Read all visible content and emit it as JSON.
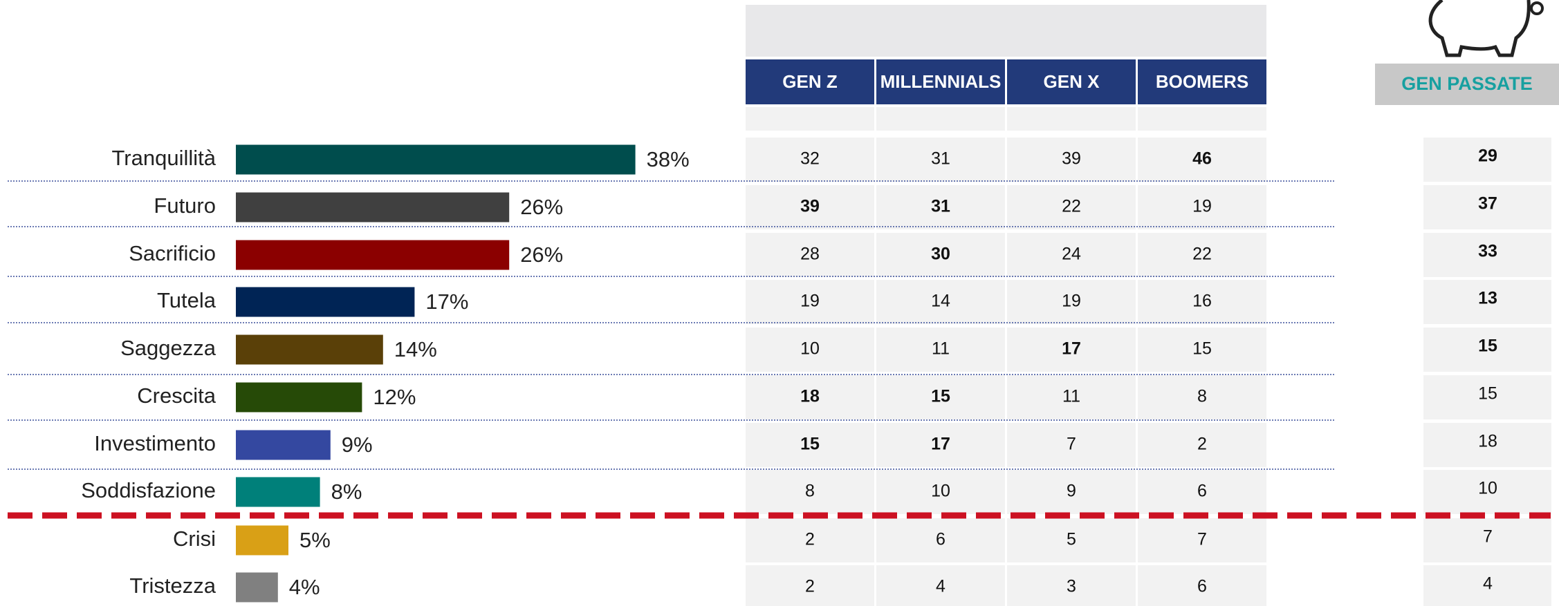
{
  "chart_data": {
    "type": "bar",
    "orientation": "horizontal",
    "categories": [
      "Tranquillità",
      "Futuro",
      "Sacrificio",
      "Tutela",
      "Saggezza",
      "Crescita",
      "Investimento",
      "Soddisfazione",
      "Crisi",
      "Tristezza"
    ],
    "values": [
      38,
      26,
      26,
      17,
      14,
      12,
      9,
      8,
      5,
      4
    ],
    "value_labels": [
      "38%",
      "26%",
      "26%",
      "17%",
      "14%",
      "12%",
      "9%",
      "8%",
      "5%",
      "4%"
    ],
    "colors": [
      "#004d4d",
      "#404040",
      "#8b0000",
      "#002455",
      "#5a4008",
      "#264a07",
      "#3448a0",
      "#00807a",
      "#d9a016",
      "#808080"
    ]
  },
  "table": {
    "columns": [
      "GEN Z",
      "MILLENNIALS",
      "GEN X",
      "BOOMERS"
    ],
    "rows": [
      [
        "32",
        "31",
        "39",
        "46"
      ],
      [
        "39",
        "31",
        "22",
        "19"
      ],
      [
        "28",
        "30",
        "24",
        "22"
      ],
      [
        "19",
        "14",
        "19",
        "16"
      ],
      [
        "10",
        "11",
        "17",
        "15"
      ],
      [
        "18",
        "15",
        "11",
        "8"
      ],
      [
        "15",
        "17",
        "7",
        "2"
      ],
      [
        "8",
        "10",
        "9",
        "6"
      ],
      [
        "2",
        "6",
        "5",
        "7"
      ],
      [
        "2",
        "4",
        "3",
        "6"
      ]
    ]
  },
  "past": {
    "title": "GEN PASSATE",
    "values": [
      "29",
      "37",
      "33",
      "13",
      "15",
      "15",
      "18",
      "10",
      "7",
      "4"
    ]
  }
}
